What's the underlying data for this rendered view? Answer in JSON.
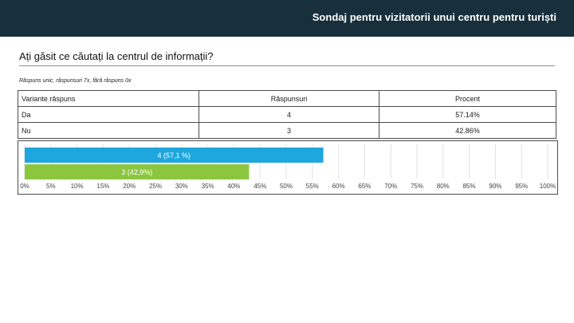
{
  "header": {
    "title": "Sondaj pentru vizitatorii unui centru pentru turiști",
    "background": "#17303b"
  },
  "question": {
    "title": "Ați găsit ce căutați la centrul de informații?"
  },
  "summary": "Răspuns unic, răspunsuri 7x, fără răspuns 0x",
  "table": {
    "headers": [
      "Variante răspuns",
      "Răspunsuri",
      "Procent"
    ],
    "rows": [
      [
        "Da",
        "4",
        "57.14%"
      ],
      [
        "Nu",
        "3",
        "42.86%"
      ]
    ]
  },
  "chart_data": {
    "type": "bar",
    "orientation": "horizontal",
    "categories": [
      "Da",
      "Nu"
    ],
    "values": [
      57.1,
      42.9
    ],
    "data_labels": [
      "4 (57,1 %)",
      "3 (42,9%)"
    ],
    "colors": [
      "#1ea7de",
      "#8cc63f"
    ],
    "xlim": [
      0,
      100
    ],
    "x_ticks": [
      0,
      5,
      10,
      15,
      20,
      25,
      30,
      35,
      40,
      45,
      50,
      55,
      60,
      65,
      70,
      75,
      80,
      85,
      90,
      95,
      100
    ],
    "tick_labels": [
      "0%",
      "5%",
      "10%",
      "15%",
      "20%",
      "25%",
      "30%",
      "35%",
      "40%",
      "45%",
      "50%",
      "55%",
      "60%",
      "65%",
      "70%",
      "75%",
      "80%",
      "85%",
      "90%",
      "95%",
      "100%"
    ],
    "grid": true
  }
}
